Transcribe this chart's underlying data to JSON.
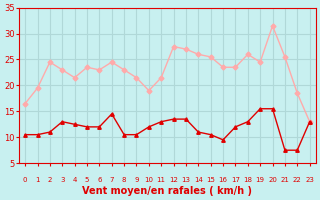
{
  "x": [
    0,
    1,
    2,
    3,
    4,
    5,
    6,
    7,
    8,
    9,
    10,
    11,
    12,
    13,
    14,
    15,
    16,
    17,
    18,
    19,
    20,
    21,
    22,
    23
  ],
  "wind_avg": [
    10.5,
    10.5,
    11,
    13,
    12.5,
    12,
    12,
    14.5,
    10.5,
    10.5,
    12,
    13,
    13.5,
    13.5,
    11,
    10.5,
    9.5,
    12,
    13,
    15.5,
    15.5,
    7.5,
    7.5,
    13
  ],
  "wind_gust": [
    16.5,
    19.5,
    24.5,
    23,
    21.5,
    23.5,
    23,
    24.5,
    23,
    21.5,
    19,
    21.5,
    27.5,
    27,
    26,
    25.5,
    23.5,
    23.5,
    26,
    24.5,
    31.5,
    25.5,
    18.5,
    13
  ],
  "avg_color": "#e00000",
  "gust_color": "#ffaaaa",
  "bg_color": "#c8f0f0",
  "grid_color": "#b0d8d8",
  "xlabel": "Vent moyen/en rafales ( km/h )",
  "xlabel_color": "#e00000",
  "tick_color": "#e00000",
  "ylim": [
    5,
    35
  ],
  "yticks": [
    5,
    10,
    15,
    20,
    25,
    30,
    35
  ],
  "arrow_color": "#e00000"
}
